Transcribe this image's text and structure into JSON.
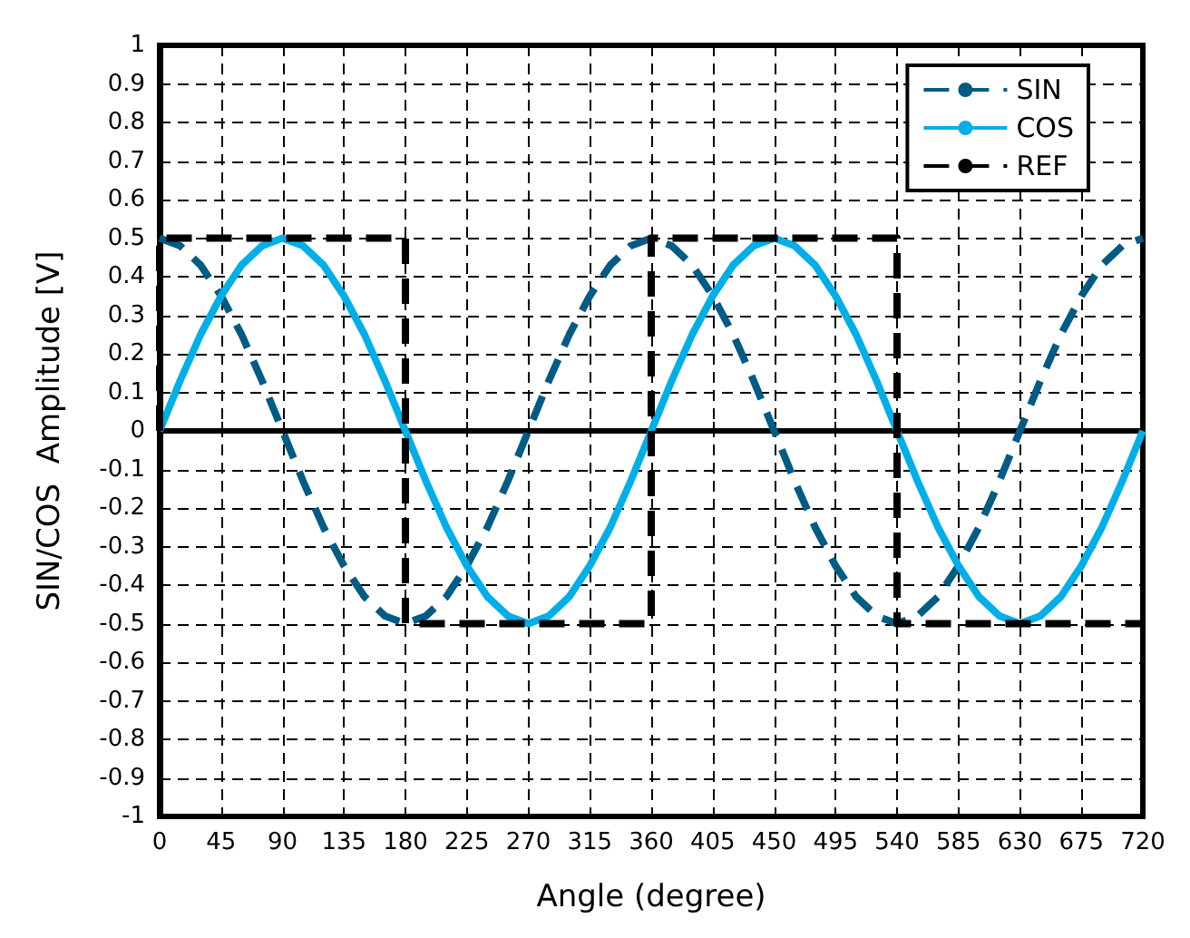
{
  "chart_data": {
    "type": "line",
    "xlabel": "Angle (degree)",
    "ylabel": "SIN/COS  Amplitude [V]",
    "x": [
      0,
      15,
      30,
      45,
      60,
      75,
      90,
      105,
      120,
      135,
      150,
      165,
      180,
      195,
      210,
      225,
      240,
      255,
      270,
      285,
      300,
      315,
      330,
      345,
      360,
      375,
      390,
      405,
      420,
      435,
      450,
      465,
      480,
      495,
      510,
      525,
      540,
      555,
      570,
      585,
      600,
      615,
      630,
      645,
      660,
      675,
      690,
      705,
      720
    ],
    "series": [
      {
        "name": "SIN",
        "color": "#005b85",
        "line_style": "dashed",
        "values": [
          0.5,
          0.48,
          0.43,
          0.35,
          0.25,
          0.13,
          0,
          -0.13,
          -0.25,
          -0.35,
          -0.43,
          -0.48,
          -0.5,
          -0.48,
          -0.43,
          -0.35,
          -0.25,
          -0.13,
          0,
          0.13,
          0.25,
          0.35,
          0.43,
          0.48,
          0.5,
          0.48,
          0.43,
          0.35,
          0.25,
          0.13,
          0,
          -0.13,
          -0.25,
          -0.35,
          -0.43,
          -0.48,
          -0.5,
          -0.48,
          -0.43,
          -0.35,
          -0.25,
          -0.13,
          0,
          0.13,
          0.25,
          0.35,
          0.43,
          0.48,
          0.5
        ]
      },
      {
        "name": "COS",
        "color": "#00aee8",
        "line_style": "solid",
        "values": [
          0,
          0.13,
          0.25,
          0.35,
          0.43,
          0.48,
          0.5,
          0.48,
          0.43,
          0.35,
          0.25,
          0.13,
          0,
          -0.13,
          -0.25,
          -0.35,
          -0.43,
          -0.48,
          -0.5,
          -0.48,
          -0.43,
          -0.35,
          -0.25,
          -0.13,
          0,
          0.13,
          0.25,
          0.35,
          0.43,
          0.48,
          0.5,
          0.48,
          0.43,
          0.35,
          0.25,
          0.13,
          0,
          -0.13,
          -0.25,
          -0.35,
          -0.43,
          -0.48,
          -0.5,
          -0.48,
          -0.43,
          -0.35,
          -0.25,
          -0.13,
          0
        ]
      },
      {
        "name": "REF",
        "color": "#000000",
        "line_style": "dashed",
        "x": [
          0,
          0,
          180,
          180,
          360,
          360,
          540,
          540,
          720
        ],
        "values": [
          0,
          0.5,
          0.5,
          -0.5,
          -0.5,
          0.5,
          0.5,
          -0.5,
          -0.5
        ]
      }
    ],
    "xlim": [
      0,
      720
    ],
    "xticks": [
      0,
      45,
      90,
      135,
      180,
      225,
      270,
      315,
      360,
      405,
      450,
      495,
      540,
      585,
      630,
      675,
      720
    ],
    "ylim": [
      -1,
      1
    ],
    "yticks": [
      -1,
      -0.9,
      -0.8,
      -0.7,
      -0.6,
      -0.5,
      -0.4,
      -0.3,
      -0.2,
      -0.1,
      0,
      0.1,
      0.2,
      0.3,
      0.4,
      0.5,
      0.6,
      0.7,
      0.8,
      0.9,
      1
    ],
    "grid": true,
    "legend": "top right",
    "marker": "none"
  }
}
